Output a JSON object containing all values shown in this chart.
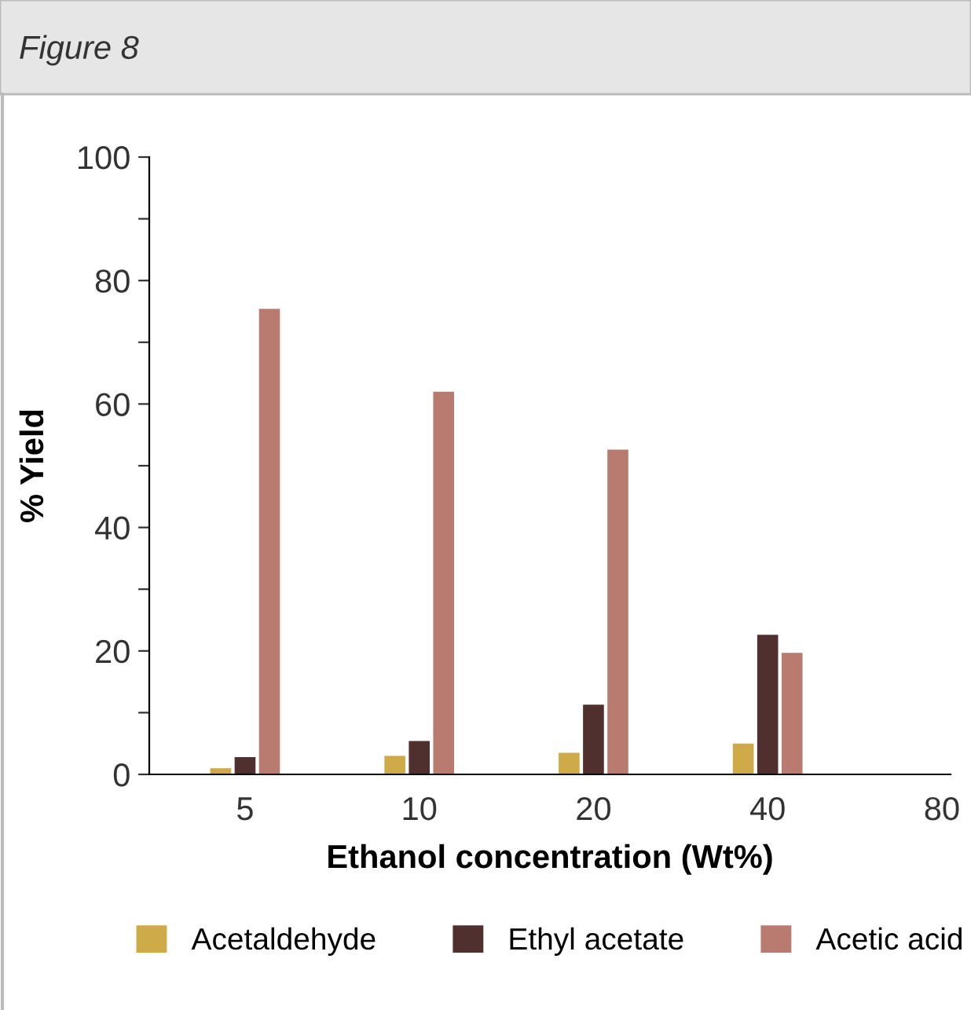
{
  "chart_data": {
    "type": "bar",
    "title": "Figure 8",
    "xlabel": "Ethanol concentration (Wt%)",
    "ylabel": "% Yield",
    "categories": [
      "5",
      "10",
      "20",
      "40",
      "80"
    ],
    "series": [
      {
        "name": "Acetaldehyde",
        "color": "#cfaa48",
        "values": [
          1,
          3,
          3.5,
          5,
          null
        ]
      },
      {
        "name": "Ethyl acetate",
        "color": "#50302e",
        "values": [
          2.8,
          5.4,
          11.3,
          22.6,
          null
        ]
      },
      {
        "name": "Acetic acid",
        "color": "#b97a70",
        "values": [
          75.4,
          62,
          52.6,
          19.7,
          null
        ]
      }
    ],
    "ylim": [
      0,
      100
    ],
    "yticks": [
      0,
      {
        "value": 10,
        "label": null
      },
      20,
      {
        "value": 30,
        "label": null
      },
      40,
      {
        "value": 50,
        "label": null
      },
      60,
      {
        "value": 70,
        "label": null
      },
      80,
      {
        "value": 90,
        "label": null
      },
      100
    ],
    "grid": false,
    "legend": "bottom"
  }
}
